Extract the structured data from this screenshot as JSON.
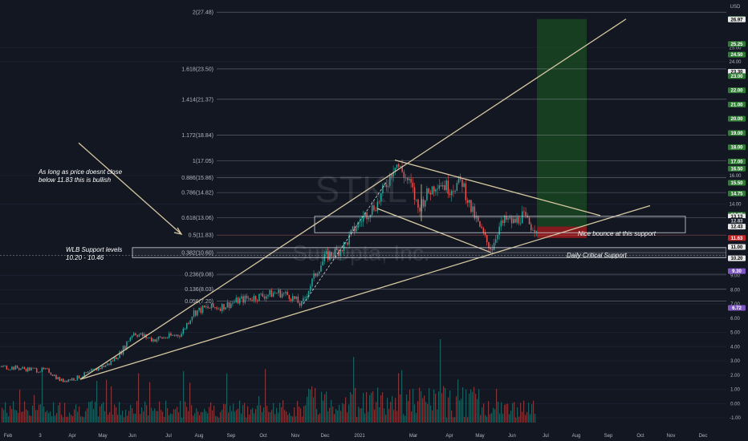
{
  "chart_data": {
    "type": "candlestick",
    "currency_label": "USD",
    "watermark": {
      "ticker": "STKL",
      "company": "SunOpta, Inc."
    },
    "y_range": [
      -1.5,
      28.0
    ],
    "x_ticks": [
      {
        "x": 10,
        "label": "Feb"
      },
      {
        "x": 50,
        "label": "3"
      },
      {
        "x": 90,
        "label": "Apr"
      },
      {
        "x": 128,
        "label": "May"
      },
      {
        "x": 165,
        "label": "Jun"
      },
      {
        "x": 210,
        "label": "Jul"
      },
      {
        "x": 248,
        "label": "Aug"
      },
      {
        "x": 288,
        "label": "Sep"
      },
      {
        "x": 328,
        "label": "Oct"
      },
      {
        "x": 368,
        "label": "Nov"
      },
      {
        "x": 405,
        "label": "Dec"
      },
      {
        "x": 448,
        "label": "2021"
      },
      {
        "x": 515,
        "label": "Mar"
      },
      {
        "x": 560,
        "label": "Apr"
      },
      {
        "x": 598,
        "label": "May"
      },
      {
        "x": 638,
        "label": "Jun"
      },
      {
        "x": 680,
        "label": "Jul"
      },
      {
        "x": 718,
        "label": "Aug"
      },
      {
        "x": 758,
        "label": "Sep"
      },
      {
        "x": 798,
        "label": "Oct"
      },
      {
        "x": 836,
        "label": "Nov"
      },
      {
        "x": 876,
        "label": "Dec"
      }
    ],
    "y_ticks": [
      {
        "value": 25.0,
        "label": "25.00"
      },
      {
        "value": 24.0,
        "label": "24.00"
      },
      {
        "value": 16.0,
        "label": "16.00"
      },
      {
        "value": 14.0,
        "label": "14.00"
      },
      {
        "value": 9.0,
        "label": "9.00"
      },
      {
        "value": 8.0,
        "label": "8.00"
      },
      {
        "value": 7.0,
        "label": "7.00"
      },
      {
        "value": 6.0,
        "label": "6.00"
      },
      {
        "value": 5.0,
        "label": "5.00"
      },
      {
        "value": 4.0,
        "label": "4.00"
      },
      {
        "value": 3.0,
        "label": "3.00"
      },
      {
        "value": 2.0,
        "label": "2.00"
      },
      {
        "value": 1.0,
        "label": "1.00"
      },
      {
        "value": 0.0,
        "label": "0.00"
      },
      {
        "value": -1.0,
        "label": "-1.00"
      }
    ],
    "price_tags": [
      {
        "value": 27.0,
        "label": "27.00",
        "bg": "#2e7d32",
        "fg": "#ffffff"
      },
      {
        "value": 26.97,
        "label": "26.97",
        "bg": "#e8e8e8",
        "fg": "#000000"
      },
      {
        "value": 25.25,
        "label": "25.25",
        "bg": "#2e7d32",
        "fg": "#ffffff"
      },
      {
        "value": 24.5,
        "label": "24.50",
        "bg": "#2e7d32",
        "fg": "#ffffff"
      },
      {
        "value": 23.3,
        "label": "23.30",
        "bg": "#e8e8e8",
        "fg": "#000000"
      },
      {
        "value": 23.0,
        "label": "23.00",
        "bg": "#2e7d32",
        "fg": "#ffffff"
      },
      {
        "value": 22.0,
        "label": "22.00",
        "bg": "#2e7d32",
        "fg": "#ffffff"
      },
      {
        "value": 21.0,
        "label": "21.00",
        "bg": "#2e7d32",
        "fg": "#ffffff"
      },
      {
        "value": 20.0,
        "label": "20.00",
        "bg": "#2e7d32",
        "fg": "#ffffff"
      },
      {
        "value": 19.0,
        "label": "19.00",
        "bg": "#2e7d32",
        "fg": "#ffffff"
      },
      {
        "value": 18.0,
        "label": "18.00",
        "bg": "#2e7d32",
        "fg": "#ffffff"
      },
      {
        "value": 17.0,
        "label": "17.00",
        "bg": "#2e7d32",
        "fg": "#ffffff"
      },
      {
        "value": 16.5,
        "label": "16.50",
        "bg": "#2e7d32",
        "fg": "#ffffff"
      },
      {
        "value": 15.5,
        "label": "15.50",
        "bg": "#2e7d32",
        "fg": "#ffffff"
      },
      {
        "value": 14.75,
        "label": "14.75",
        "bg": "#2e7d32",
        "fg": "#ffffff"
      },
      {
        "value": 13.25,
        "label": "13.25",
        "bg": "#2e7d32",
        "fg": "#ffffff"
      },
      {
        "value": 13.13,
        "label": "13.13",
        "bg": "#e8e8e8",
        "fg": "#000000"
      },
      {
        "value": 12.83,
        "label": "12.83",
        "bg": "#131722",
        "fg": "#d1d4dc"
      },
      {
        "value": 12.43,
        "label": "12.43",
        "bg": "#e8e8e8",
        "fg": "#000000"
      },
      {
        "value": 11.63,
        "label": "11.63",
        "bg": "#c62828",
        "fg": "#ffffff"
      },
      {
        "value": 11.0,
        "label": "11.00",
        "bg": "#e8e8e8",
        "fg": "#000000"
      },
      {
        "value": 10.2,
        "label": "10.20",
        "bg": "#e8e8e8",
        "fg": "#000000"
      },
      {
        "value": 9.3,
        "label": "9.30",
        "bg": "#7e57c2",
        "fg": "#ffffff"
      },
      {
        "value": 6.72,
        "label": "6.72",
        "bg": "#7e57c2",
        "fg": "#ffffff"
      }
    ],
    "fib_levels": [
      {
        "value": 27.48,
        "label": "2(27.48)",
        "color": "#b2b5be"
      },
      {
        "value": 23.5,
        "label": "1.618(23.50)",
        "color": "#b2b5be"
      },
      {
        "value": 21.37,
        "label": "1.414(21.37)",
        "color": "#b2b5be"
      },
      {
        "value": 18.84,
        "label": "1.172(18.84)",
        "color": "#b2b5be"
      },
      {
        "value": 17.05,
        "label": "1(17.05)",
        "color": "#b2b5be"
      },
      {
        "value": 15.86,
        "label": "0.886(15.86)",
        "color": "#b2b5be"
      },
      {
        "value": 14.82,
        "label": "0.786(14.82)",
        "color": "#b2b5be"
      },
      {
        "value": 13.06,
        "label": "0.618(13.06)",
        "color": "#b2b5be"
      },
      {
        "value": 11.83,
        "label": "0.5(11.83)",
        "color": "#e57373"
      },
      {
        "value": 10.6,
        "label": "0.382(10.60)",
        "color": "#b2b5be"
      },
      {
        "value": 9.08,
        "label": "0.236(9.08)",
        "color": "#b2b5be"
      },
      {
        "value": 8.03,
        "label": "0.136(8.03)",
        "color": "#b2b5be"
      },
      {
        "value": 7.2,
        "label": "0.056(7.20)",
        "color": "#b2b5be"
      }
    ],
    "annotations": {
      "bullish_note_line1": "As long as price doesnt close",
      "bullish_note_line2": "below 11.83 this is bullish",
      "support_note_line1": "WLB Support levels",
      "support_note_line2": "10.20 - 10.46",
      "bounce_note": "Nice bounce at this support",
      "critical_note": "Daily Critical Support"
    },
    "price_path": [
      [
        0,
        2.6
      ],
      [
        20,
        2.5
      ],
      [
        40,
        2.4
      ],
      [
        60,
        2.3
      ],
      [
        75,
        1.6
      ],
      [
        95,
        1.8
      ],
      [
        115,
        2.3
      ],
      [
        135,
        2.8
      ],
      [
        150,
        3.6
      ],
      [
        165,
        5.0
      ],
      [
        175,
        4.8
      ],
      [
        190,
        4.5
      ],
      [
        210,
        4.7
      ],
      [
        225,
        4.9
      ],
      [
        240,
        6.4
      ],
      [
        255,
        6.7
      ],
      [
        275,
        6.8
      ],
      [
        300,
        7.3
      ],
      [
        320,
        7.5
      ],
      [
        345,
        7.8
      ],
      [
        360,
        7.6
      ],
      [
        375,
        6.9
      ],
      [
        385,
        8.2
      ],
      [
        395,
        9.4
      ],
      [
        405,
        10.3
      ],
      [
        420,
        10.7
      ],
      [
        430,
        11.2
      ],
      [
        440,
        12.2
      ],
      [
        455,
        13.3
      ],
      [
        470,
        14.1
      ],
      [
        482,
        15.6
      ],
      [
        492,
        17.0
      ],
      [
        500,
        16.3
      ],
      [
        512,
        15.2
      ],
      [
        520,
        13.7
      ],
      [
        530,
        14.6
      ],
      [
        545,
        15.6
      ],
      [
        560,
        15.1
      ],
      [
        575,
        15.6
      ],
      [
        585,
        13.8
      ],
      [
        595,
        12.6
      ],
      [
        605,
        11.4
      ],
      [
        612,
        10.9
      ],
      [
        620,
        12.3
      ],
      [
        630,
        12.9
      ],
      [
        640,
        12.7
      ],
      [
        650,
        13.2
      ],
      [
        660,
        12.5
      ],
      [
        668,
        12.43
      ]
    ],
    "volume_bars_note": ""
  },
  "colors": {
    "background": "#131722",
    "candle_up": "#26a69a",
    "candle_down": "#ef5350",
    "trendline": "#d6c7a1",
    "target_zone": "#1b5e20"
  }
}
